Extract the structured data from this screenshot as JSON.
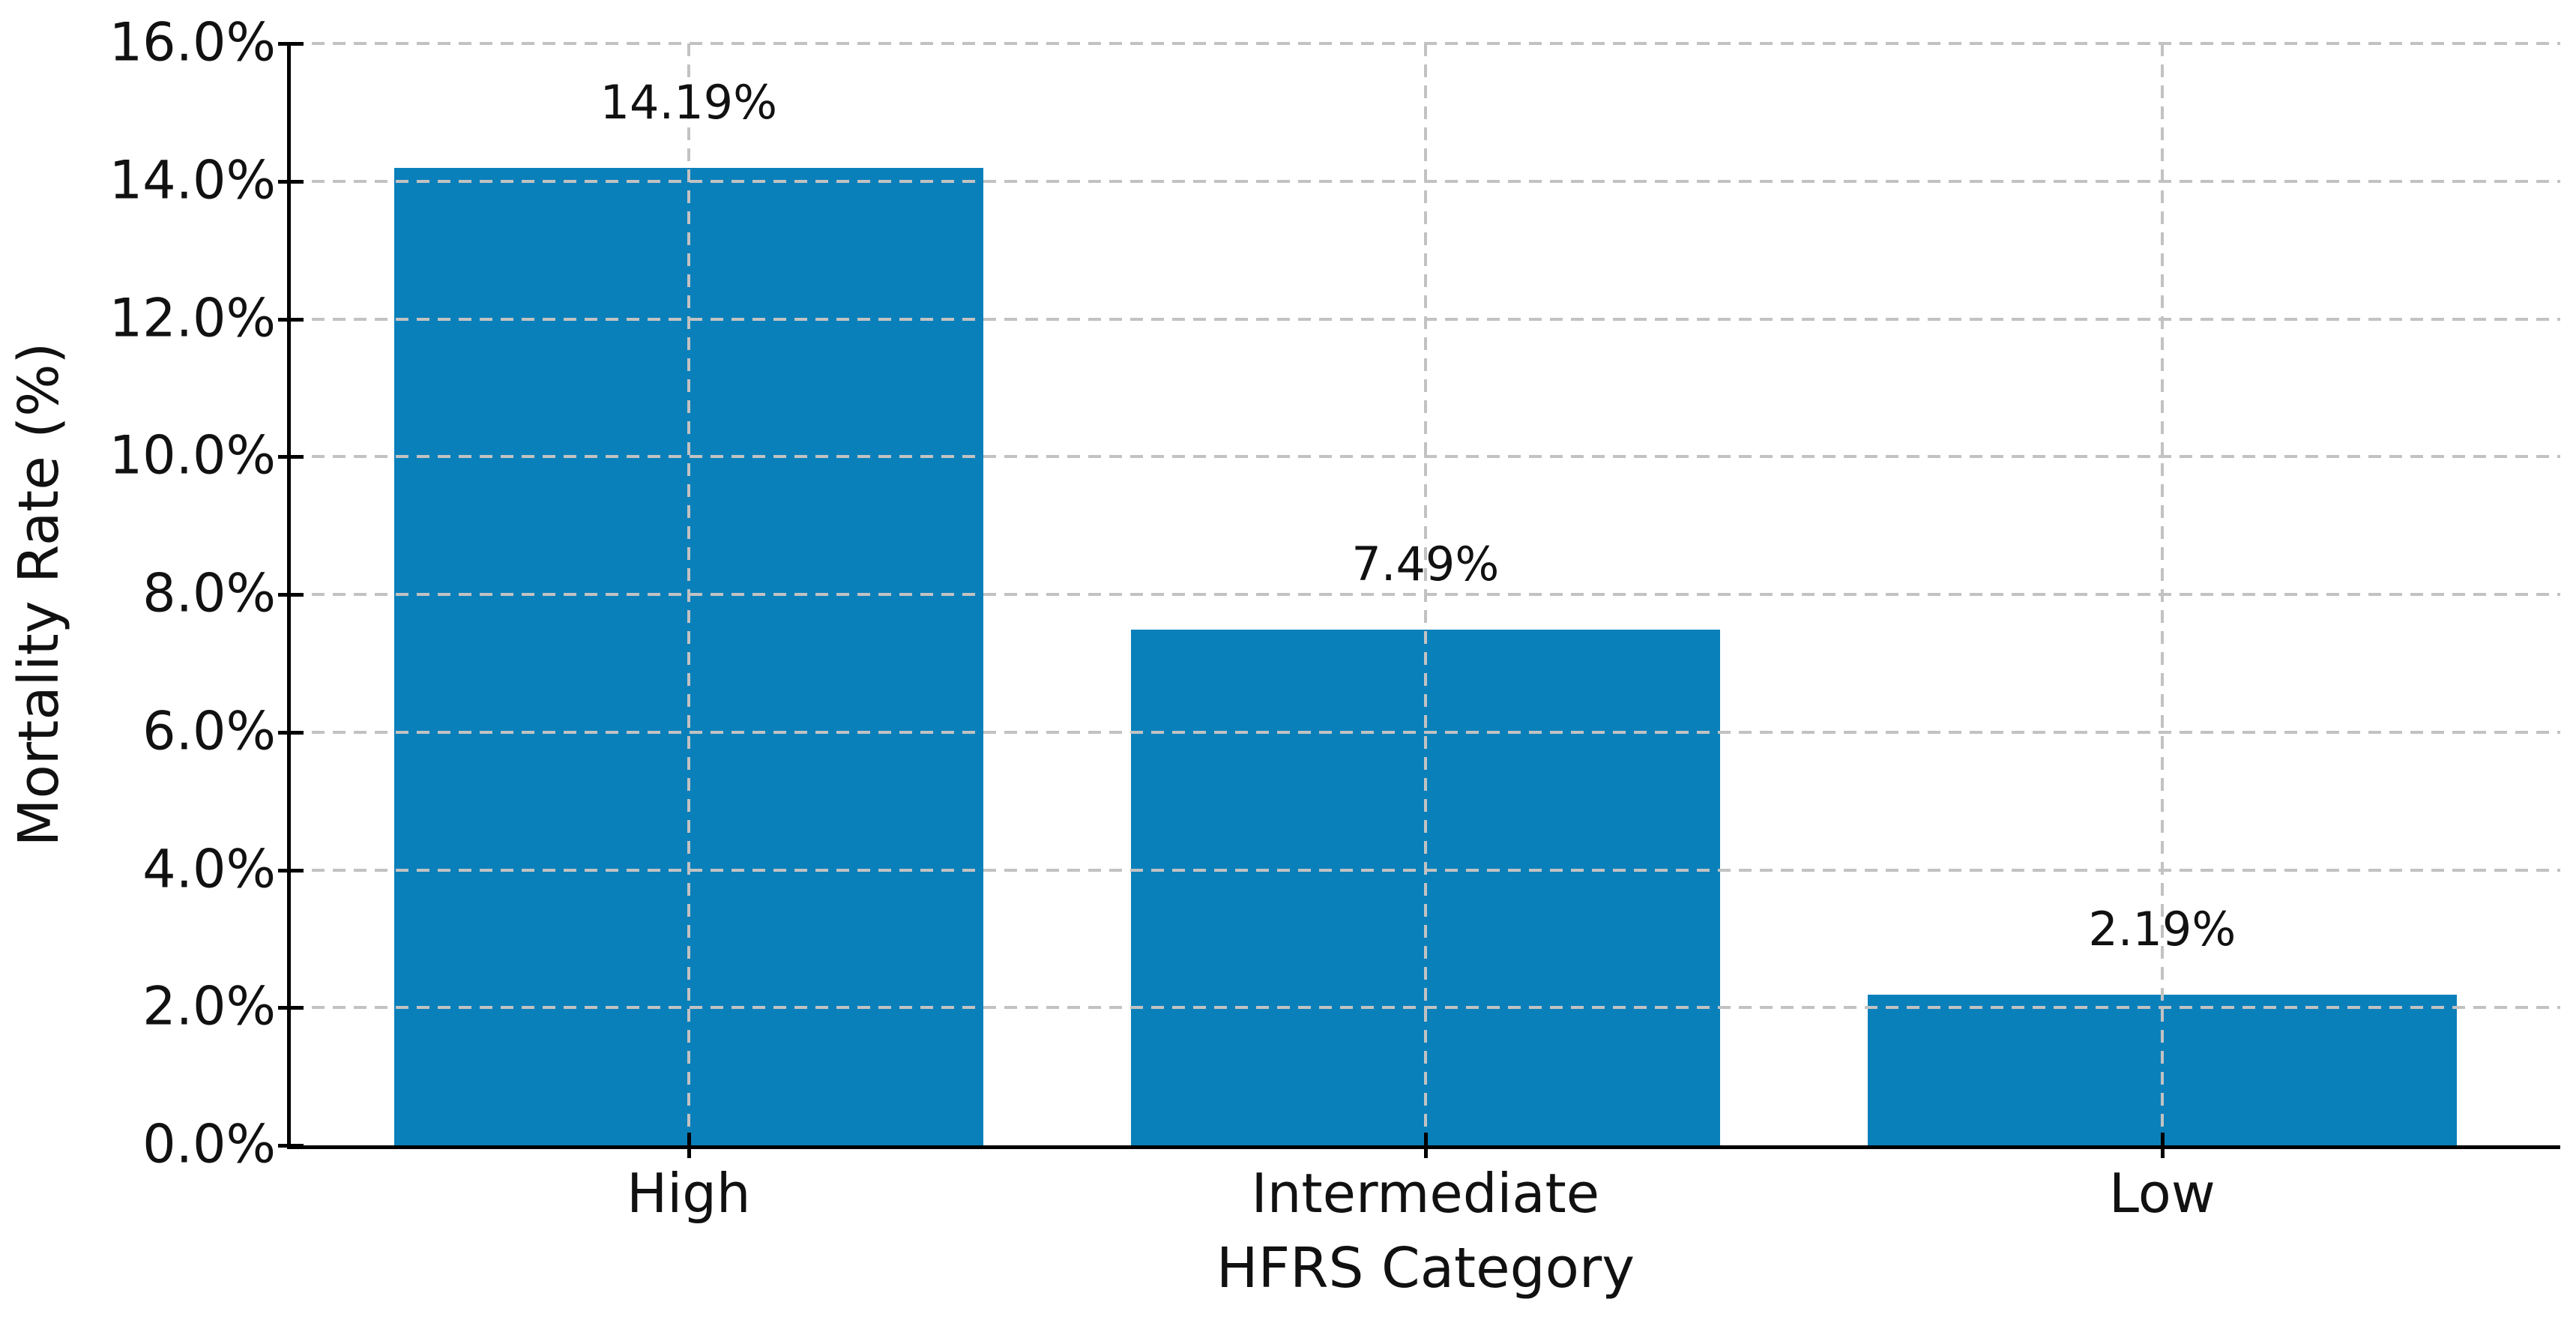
{
  "colors": {
    "bar": "#0a80ba",
    "grid": "#c2c2c2",
    "spine": "#000000",
    "text": "#111111",
    "background": "#ffffff"
  },
  "chart_data": {
    "type": "bar",
    "title": "",
    "xlabel": "HFRS Category",
    "ylabel": "Mortality Rate (%)",
    "categories": [
      "High",
      "Intermediate",
      "Low"
    ],
    "values": [
      14.19,
      7.49,
      2.19
    ],
    "data_labels": [
      "14.19%",
      "7.49%",
      "2.19%"
    ],
    "ylim": [
      0,
      16
    ],
    "ytick_values": [
      0,
      2,
      4,
      6,
      8,
      10,
      12,
      14,
      16
    ],
    "ytick_labels": [
      "0.0%",
      "2.0%",
      "4.0%",
      "6.0%",
      "8.0%",
      "10.0%",
      "12.0%",
      "14.0%",
      "16.0%"
    ],
    "grid": "dashed-both-axes-above-bars",
    "legend_position": "none",
    "bar_width_fraction": 0.8
  }
}
